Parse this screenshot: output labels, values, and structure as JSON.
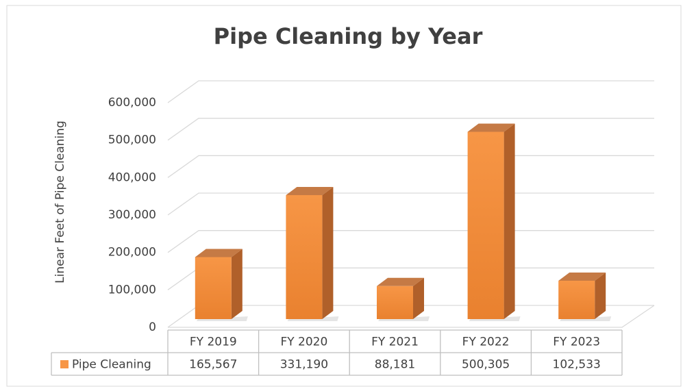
{
  "chart_data": {
    "type": "bar3d",
    "title": "Pipe Cleaning by Year",
    "y_label": "Linear Feet of Pipe Cleaning",
    "categories": [
      "FY 2019",
      "FY 2020",
      "FY 2021",
      "FY 2022",
      "FY 2023"
    ],
    "series": [
      {
        "name": "Pipe Cleaning",
        "color": "#f79646",
        "values": [
          165567,
          331190,
          88181,
          500305,
          102533
        ],
        "value_labels": [
          "165,567",
          "331,190",
          "88,181",
          "500,305",
          "102,533"
        ]
      }
    ],
    "ylim": [
      0,
      600000
    ],
    "yticks": [
      0,
      {
        "value": 100000,
        "label": "100,000"
      },
      {
        "value": 200000,
        "label": "200,000"
      },
      {
        "value": 300000,
        "label": "300,000"
      },
      {
        "value": 400000,
        "label": "400,000"
      },
      {
        "value": 500000,
        "label": "500,000"
      },
      {
        "value": 600000,
        "label": "600,000"
      }
    ],
    "grid": true,
    "data_table": true
  }
}
